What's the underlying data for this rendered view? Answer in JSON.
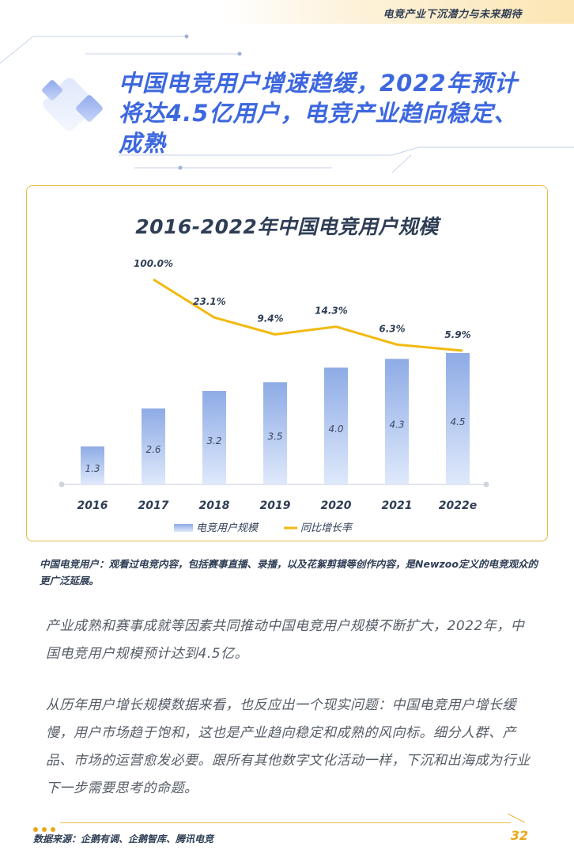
{
  "header": {
    "running_title": "电竞产业下沉潜力与未来期待"
  },
  "headline": "中国电竞用户增速趋缓，2022年预计将达4.5亿用户，电竞产业趋向稳定、成熟",
  "chart_data": {
    "type": "bar",
    "title": "2016-2022年中国电竞用户规模",
    "categories": [
      "2016",
      "2017",
      "2018",
      "2019",
      "2020",
      "2021",
      "2022e"
    ],
    "series": [
      {
        "name": "电竞用户规模",
        "type": "bar",
        "values": [
          1.3,
          2.6,
          3.2,
          3.5,
          4.0,
          4.3,
          4.5
        ],
        "labels": [
          "1.3",
          "2.6",
          "3.2",
          "3.5",
          "4.0",
          "4.3",
          "4.5"
        ],
        "color": "#8eabe6"
      },
      {
        "name": "同比增长率",
        "type": "line",
        "values": [
          null,
          100.0,
          23.1,
          9.4,
          14.3,
          6.3,
          5.9
        ],
        "labels": [
          "",
          "100.0%",
          "23.1%",
          "9.4%",
          "14.3%",
          "6.3%",
          "5.9%"
        ],
        "color": "#f2b90f"
      }
    ],
    "xlabel": "",
    "ylabel": "",
    "legend": "bottom",
    "grid": false
  },
  "note": "中国电竞用户：观看过电竞内容，包括赛事直播、录播，以及花絮剪辑等创作内容，是Newzoo定义的电竞观众的更广泛延展。",
  "paragraphs": [
    "产业成熟和赛事成就等因素共同推动中国电竞用户规模不断扩大，2022年，中国电竞用户规模预计达到4.5亿。",
    "从历年用户增长规模数据来看，也反应出一个现实问题：中国电竞用户增长缓慢，用户市场趋于饱和，这也是产业趋向稳定和成熟的风向标。细分人群、产品、市场的运营愈发必要。跟所有其他数字文化活动一样，下沉和出海成为行业下一步需要思考的命题。"
  ],
  "footer": {
    "source": "数据来源：企鹅有调、企鹅智库、腾讯电竞",
    "page_number": "32"
  }
}
